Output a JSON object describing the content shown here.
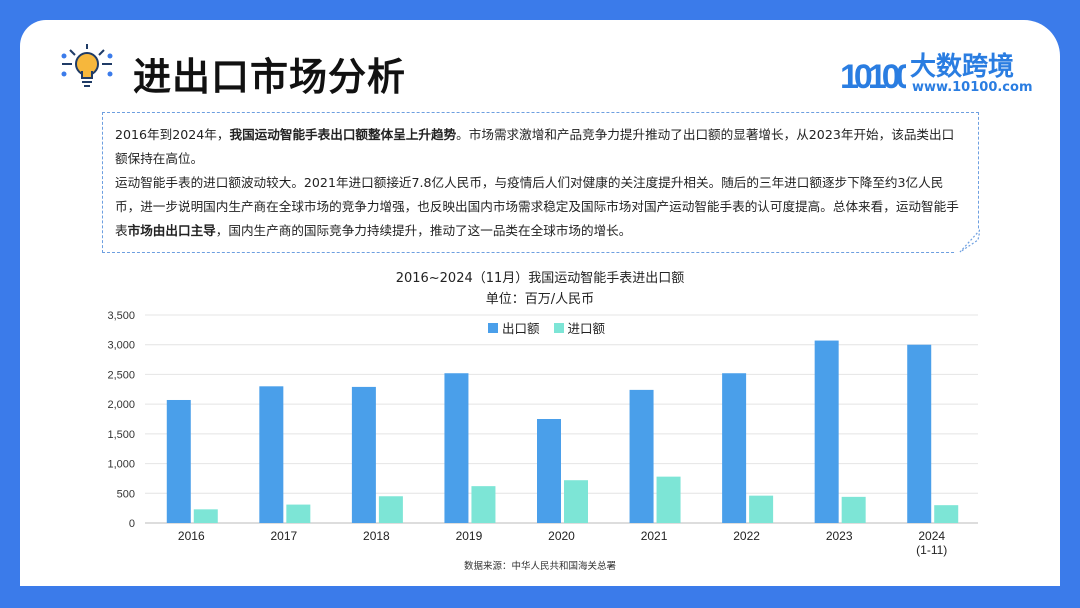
{
  "header": {
    "title": "进出口市场分析",
    "logo_name": "大数跨境",
    "logo_url": "www.10100.com",
    "logo_mark": "10100"
  },
  "summary": {
    "p1_a": "2016年到2024年，",
    "p1_b": "我国运动智能手表出口额整体呈上升趋势",
    "p1_c": "。市场需求激增和产品竞争力提升推动了出口额的显著增长，从2023年开始，该品类出口额保持在高位。",
    "p2_a": "运动智能手表的进口额波动较大。2021年进口额接近7.8亿人民币，与疫情后人们对健康的关注度提升相关。随后的三年进口额逐步下降至约3亿人民币，进一步说明国内生产商在全球市场的竞争力增强，也反映出国内市场需求稳定及国际市场对国产运动智能手表的认可度提高。总体来看，运动智能手表",
    "p2_b": "市场由出口主导",
    "p2_c": "，国内生产商的国际竞争力持续提升，推动了这一品类在全球市场的增长。"
  },
  "chart_data": {
    "type": "bar",
    "title": "2016~2024（11月）我国运动智能手表进出口额",
    "subtitle": "单位：百万/人民币",
    "categories": [
      "2016",
      "2017",
      "2018",
      "2019",
      "2020",
      "2021",
      "2022",
      "2023",
      "2024\n(1-11)"
    ],
    "series": [
      {
        "name": "出口额",
        "color": "#4a9fea",
        "values": [
          2070,
          2300,
          2290,
          2520,
          1750,
          2240,
          2520,
          3070,
          3000
        ]
      },
      {
        "name": "进口额",
        "color": "#7de5d6",
        "values": [
          230,
          310,
          450,
          620,
          720,
          780,
          460,
          440,
          300
        ]
      }
    ],
    "y_ticks": [
      "0",
      "500",
      "1,000",
      "1,500",
      "2,000",
      "2,500",
      "3,000",
      "3,500"
    ],
    "ylim": [
      0,
      3500
    ],
    "grid": true,
    "legend_position": "top-center"
  },
  "footer": {
    "source": "数据来源：中华人民共和国海关总署"
  }
}
